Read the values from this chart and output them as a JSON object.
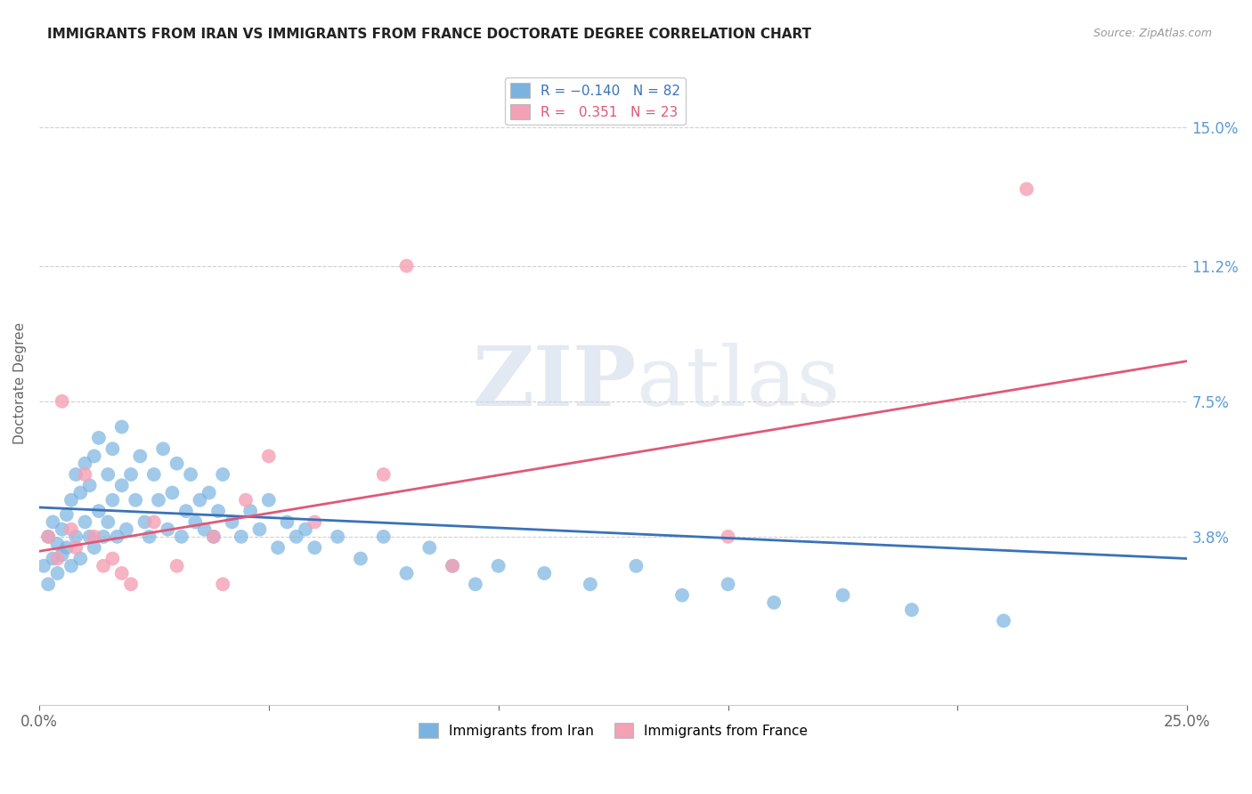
{
  "title": "IMMIGRANTS FROM IRAN VS IMMIGRANTS FROM FRANCE DOCTORATE DEGREE CORRELATION CHART",
  "source": "Source: ZipAtlas.com",
  "ylabel": "Doctorate Degree",
  "ytick_labels": [
    "3.8%",
    "7.5%",
    "11.2%",
    "15.0%"
  ],
  "ytick_values": [
    0.038,
    0.075,
    0.112,
    0.15
  ],
  "xlim": [
    0.0,
    0.25
  ],
  "ylim": [
    -0.008,
    0.168
  ],
  "iran_color": "#7ab3e0",
  "france_color": "#f4a0b5",
  "iran_line_color": "#3a72b8",
  "france_line_color": "#e05878",
  "watermark": "ZIPatlas",
  "iran_x": [
    0.001,
    0.002,
    0.002,
    0.003,
    0.003,
    0.004,
    0.004,
    0.005,
    0.005,
    0.006,
    0.006,
    0.007,
    0.007,
    0.008,
    0.008,
    0.009,
    0.009,
    0.01,
    0.01,
    0.011,
    0.011,
    0.012,
    0.012,
    0.013,
    0.013,
    0.014,
    0.015,
    0.015,
    0.016,
    0.016,
    0.017,
    0.018,
    0.018,
    0.019,
    0.02,
    0.021,
    0.022,
    0.023,
    0.024,
    0.025,
    0.026,
    0.027,
    0.028,
    0.029,
    0.03,
    0.031,
    0.032,
    0.033,
    0.034,
    0.035,
    0.036,
    0.037,
    0.038,
    0.039,
    0.04,
    0.042,
    0.044,
    0.046,
    0.048,
    0.05,
    0.052,
    0.054,
    0.056,
    0.058,
    0.06,
    0.065,
    0.07,
    0.075,
    0.08,
    0.085,
    0.09,
    0.095,
    0.1,
    0.11,
    0.12,
    0.13,
    0.14,
    0.15,
    0.16,
    0.175,
    0.19,
    0.21
  ],
  "iran_y": [
    0.03,
    0.025,
    0.038,
    0.032,
    0.042,
    0.028,
    0.036,
    0.033,
    0.04,
    0.035,
    0.044,
    0.03,
    0.048,
    0.038,
    0.055,
    0.032,
    0.05,
    0.042,
    0.058,
    0.038,
    0.052,
    0.035,
    0.06,
    0.045,
    0.065,
    0.038,
    0.055,
    0.042,
    0.048,
    0.062,
    0.038,
    0.052,
    0.068,
    0.04,
    0.055,
    0.048,
    0.06,
    0.042,
    0.038,
    0.055,
    0.048,
    0.062,
    0.04,
    0.05,
    0.058,
    0.038,
    0.045,
    0.055,
    0.042,
    0.048,
    0.04,
    0.05,
    0.038,
    0.045,
    0.055,
    0.042,
    0.038,
    0.045,
    0.04,
    0.048,
    0.035,
    0.042,
    0.038,
    0.04,
    0.035,
    0.038,
    0.032,
    0.038,
    0.028,
    0.035,
    0.03,
    0.025,
    0.03,
    0.028,
    0.025,
    0.03,
    0.022,
    0.025,
    0.02,
    0.022,
    0.018,
    0.015
  ],
  "france_x": [
    0.002,
    0.004,
    0.005,
    0.007,
    0.008,
    0.01,
    0.012,
    0.014,
    0.016,
    0.018,
    0.02,
    0.025,
    0.03,
    0.038,
    0.04,
    0.045,
    0.05,
    0.06,
    0.075,
    0.08,
    0.09,
    0.15,
    0.215
  ],
  "france_y": [
    0.038,
    0.032,
    0.075,
    0.04,
    0.035,
    0.055,
    0.038,
    0.03,
    0.032,
    0.028,
    0.025,
    0.042,
    0.03,
    0.038,
    0.025,
    0.048,
    0.06,
    0.042,
    0.055,
    0.112,
    0.03,
    0.038,
    0.133
  ],
  "iran_line_x0": 0.0,
  "iran_line_y0": 0.046,
  "iran_line_x1": 0.25,
  "iran_line_y1": 0.032,
  "france_line_x0": 0.0,
  "france_line_y0": 0.034,
  "france_line_x1": 0.25,
  "france_line_y1": 0.086
}
